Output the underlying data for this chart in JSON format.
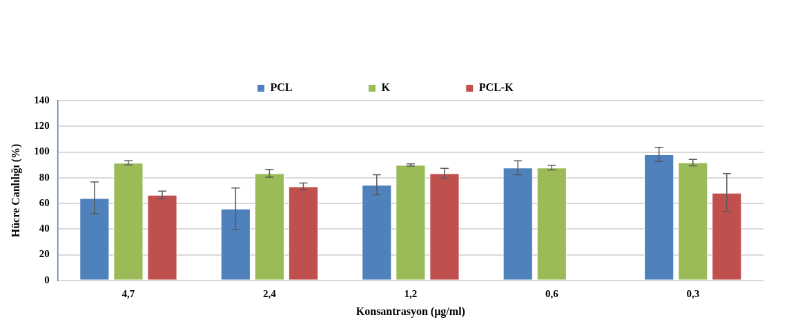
{
  "chart_data": {
    "type": "bar",
    "xlabel": "Konsantrasyon (µg/ml)",
    "ylabel": "Hücre Canlılığı (%)",
    "categories": [
      "4,7",
      "2,4",
      "1,2",
      "0,6",
      "0,3"
    ],
    "series": [
      {
        "name": "PCL",
        "color": "#4f81bd",
        "values": [
          64.1,
          55.8,
          74.4,
          87.8,
          98.1
        ],
        "errors": [
          [
            52,
            76.7
          ],
          [
            39.7,
            72
          ],
          [
            66.7,
            82.3
          ],
          [
            82.3,
            93.2
          ],
          [
            92.6,
            103.6
          ]
        ]
      },
      {
        "name": "K",
        "color": "#9bbb59",
        "values": [
          91.5,
          83.3,
          90,
          87.8,
          91.8
        ],
        "errors": [
          [
            89.9,
            93.2
          ],
          [
            80.4,
            86.4
          ],
          [
            89,
            90.8
          ],
          [
            86,
            89.7
          ],
          [
            89.3,
            94.2
          ]
        ]
      },
      {
        "name": "PCL-K",
        "color": "#c0504d",
        "values": [
          66.6,
          73.2,
          83.3,
          0,
          68.2
        ],
        "errors": [
          [
            63.6,
            69.6
          ],
          [
            70.5,
            75.9
          ],
          [
            79.6,
            87.3
          ],
          null,
          [
            53.7,
            83.2
          ]
        ]
      }
    ],
    "ylim": [
      0,
      140
    ],
    "yticks": [
      0,
      20,
      40,
      60,
      80,
      100,
      120,
      140
    ],
    "grid": "y",
    "legend": "top"
  }
}
